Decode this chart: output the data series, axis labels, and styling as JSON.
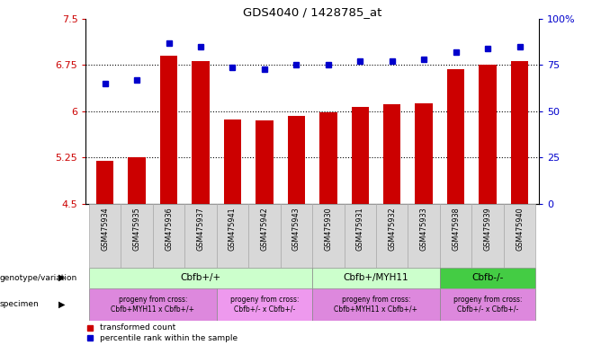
{
  "title": "GDS4040 / 1428785_at",
  "samples": [
    "GSM475934",
    "GSM475935",
    "GSM475936",
    "GSM475937",
    "GSM475941",
    "GSM475942",
    "GSM475943",
    "GSM475930",
    "GSM475931",
    "GSM475932",
    "GSM475933",
    "GSM475938",
    "GSM475939",
    "GSM475940"
  ],
  "red_values": [
    5.2,
    5.25,
    6.9,
    6.82,
    5.87,
    5.85,
    5.92,
    5.98,
    6.07,
    6.12,
    6.13,
    6.68,
    6.75,
    6.82
  ],
  "blue_values": [
    65,
    67,
    87,
    85,
    74,
    73,
    75,
    75,
    77,
    77,
    78,
    82,
    84,
    85
  ],
  "ylim_left": [
    4.5,
    7.5
  ],
  "ylim_right": [
    0,
    100
  ],
  "yticks_left": [
    4.5,
    5.25,
    6.0,
    6.75,
    7.5
  ],
  "yticks_right": [
    0,
    25,
    50,
    75,
    100
  ],
  "ytick_labels_left": [
    "4.5",
    "5.25",
    "6",
    "6.75",
    "7.5"
  ],
  "ytick_labels_right": [
    "0",
    "25",
    "50",
    "75",
    "100%"
  ],
  "hlines": [
    5.25,
    6.0,
    6.75
  ],
  "bar_color": "#cc0000",
  "dot_color": "#0000cc",
  "genotype_groups": [
    {
      "label": "Cbfb+/+",
      "start": 0,
      "end": 7,
      "color": "#ccffcc"
    },
    {
      "label": "Cbfb+/MYH11",
      "start": 7,
      "end": 11,
      "color": "#ccffcc"
    },
    {
      "label": "Cbfb-/-",
      "start": 11,
      "end": 14,
      "color": "#44cc44"
    }
  ],
  "specimen_groups": [
    {
      "label": "progeny from cross:\nCbfb+MYH11 x Cbfb+/+",
      "start": 0,
      "end": 4,
      "color": "#dd88dd"
    },
    {
      "label": "progeny from cross:\nCbfb+/- x Cbfb+/-",
      "start": 4,
      "end": 7,
      "color": "#ee99ee"
    },
    {
      "label": "progeny from cross:\nCbfb+MYH11 x Cbfb+/+",
      "start": 7,
      "end": 11,
      "color": "#dd88dd"
    },
    {
      "label": "progeny from cross:\nCbfb+/- x Cbfb+/-",
      "start": 11,
      "end": 14,
      "color": "#dd88dd"
    }
  ],
  "xtick_bg": "#d8d8d8"
}
